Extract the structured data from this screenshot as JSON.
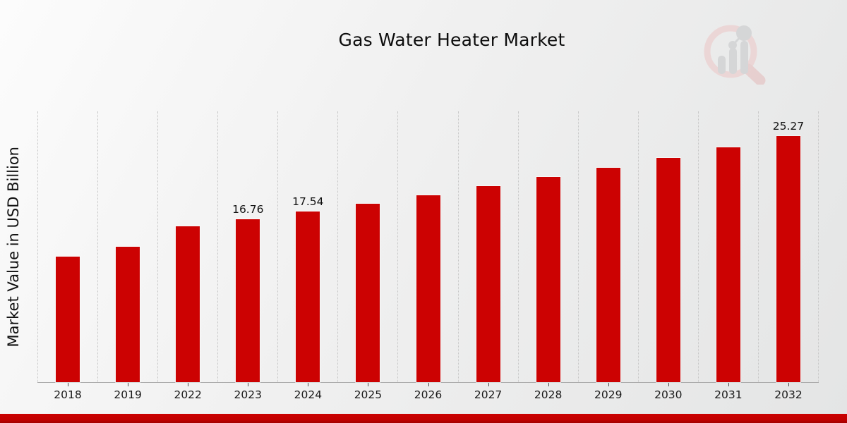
{
  "page": {
    "title": "Gas Water Heater Market",
    "logo_name": "magnifier-bar-chart-watermark",
    "accent_color": "#cc0202",
    "footer_stripe_color": "#c20000"
  },
  "chart_data": {
    "type": "bar",
    "title": "Gas Water Heater Market",
    "xlabel": "",
    "ylabel": "Market Value in USD Billion",
    "ylim": [
      0,
      27.9
    ],
    "grid": "vertical dotted column separators, no horizontal gridlines",
    "legend": "none",
    "bar_color": "#cc0202",
    "categories": [
      "2018",
      "2019",
      "2022",
      "2023",
      "2024",
      "2025",
      "2026",
      "2027",
      "2028",
      "2029",
      "2030",
      "2031",
      "2032"
    ],
    "values": [
      12.9,
      13.93,
      16.01,
      16.76,
      17.54,
      18.36,
      19.22,
      20.12,
      21.06,
      22.04,
      23.07,
      24.15,
      25.27
    ],
    "data_labels": [
      "",
      "",
      "",
      "16.76",
      "17.54",
      "",
      "",
      "",
      "",
      "",
      "",
      "",
      "25.27"
    ]
  }
}
